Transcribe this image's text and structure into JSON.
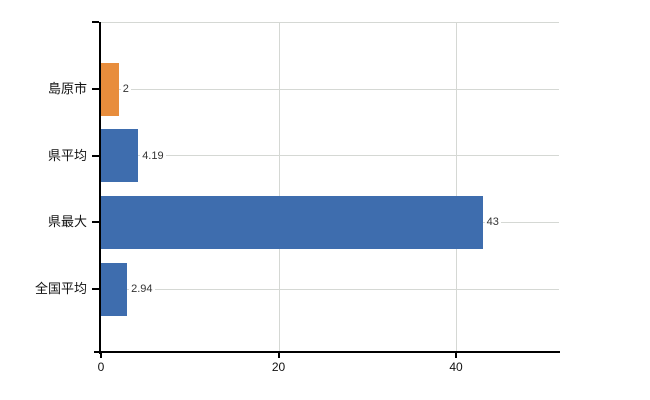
{
  "chart_data": {
    "type": "bar",
    "orientation": "horizontal",
    "title": "",
    "xlabel": "",
    "ylabel": "",
    "categories": [
      "島原市",
      "県平均",
      "県最大",
      "全国平均"
    ],
    "values": [
      2,
      4.19,
      43,
      2.94
    ],
    "value_labels": [
      "2",
      "4.19",
      "43",
      "2.94"
    ],
    "bar_colors": [
      "#e88d3c",
      "#3e6dae",
      "#3e6dae",
      "#3e6dae"
    ],
    "xlim": [
      0,
      51.6
    ],
    "xticks": [
      0,
      20,
      40
    ],
    "xtick_labels": [
      "0",
      "20",
      "40"
    ],
    "grid": true,
    "legend": false,
    "colors": {
      "highlight_bar": "#e88d3c",
      "default_bar": "#3e6dae",
      "gridline": "#d5d8d4",
      "axis": "#000000",
      "value_text": "#333333",
      "label_text": "#111111",
      "background": "#ffffff"
    }
  }
}
